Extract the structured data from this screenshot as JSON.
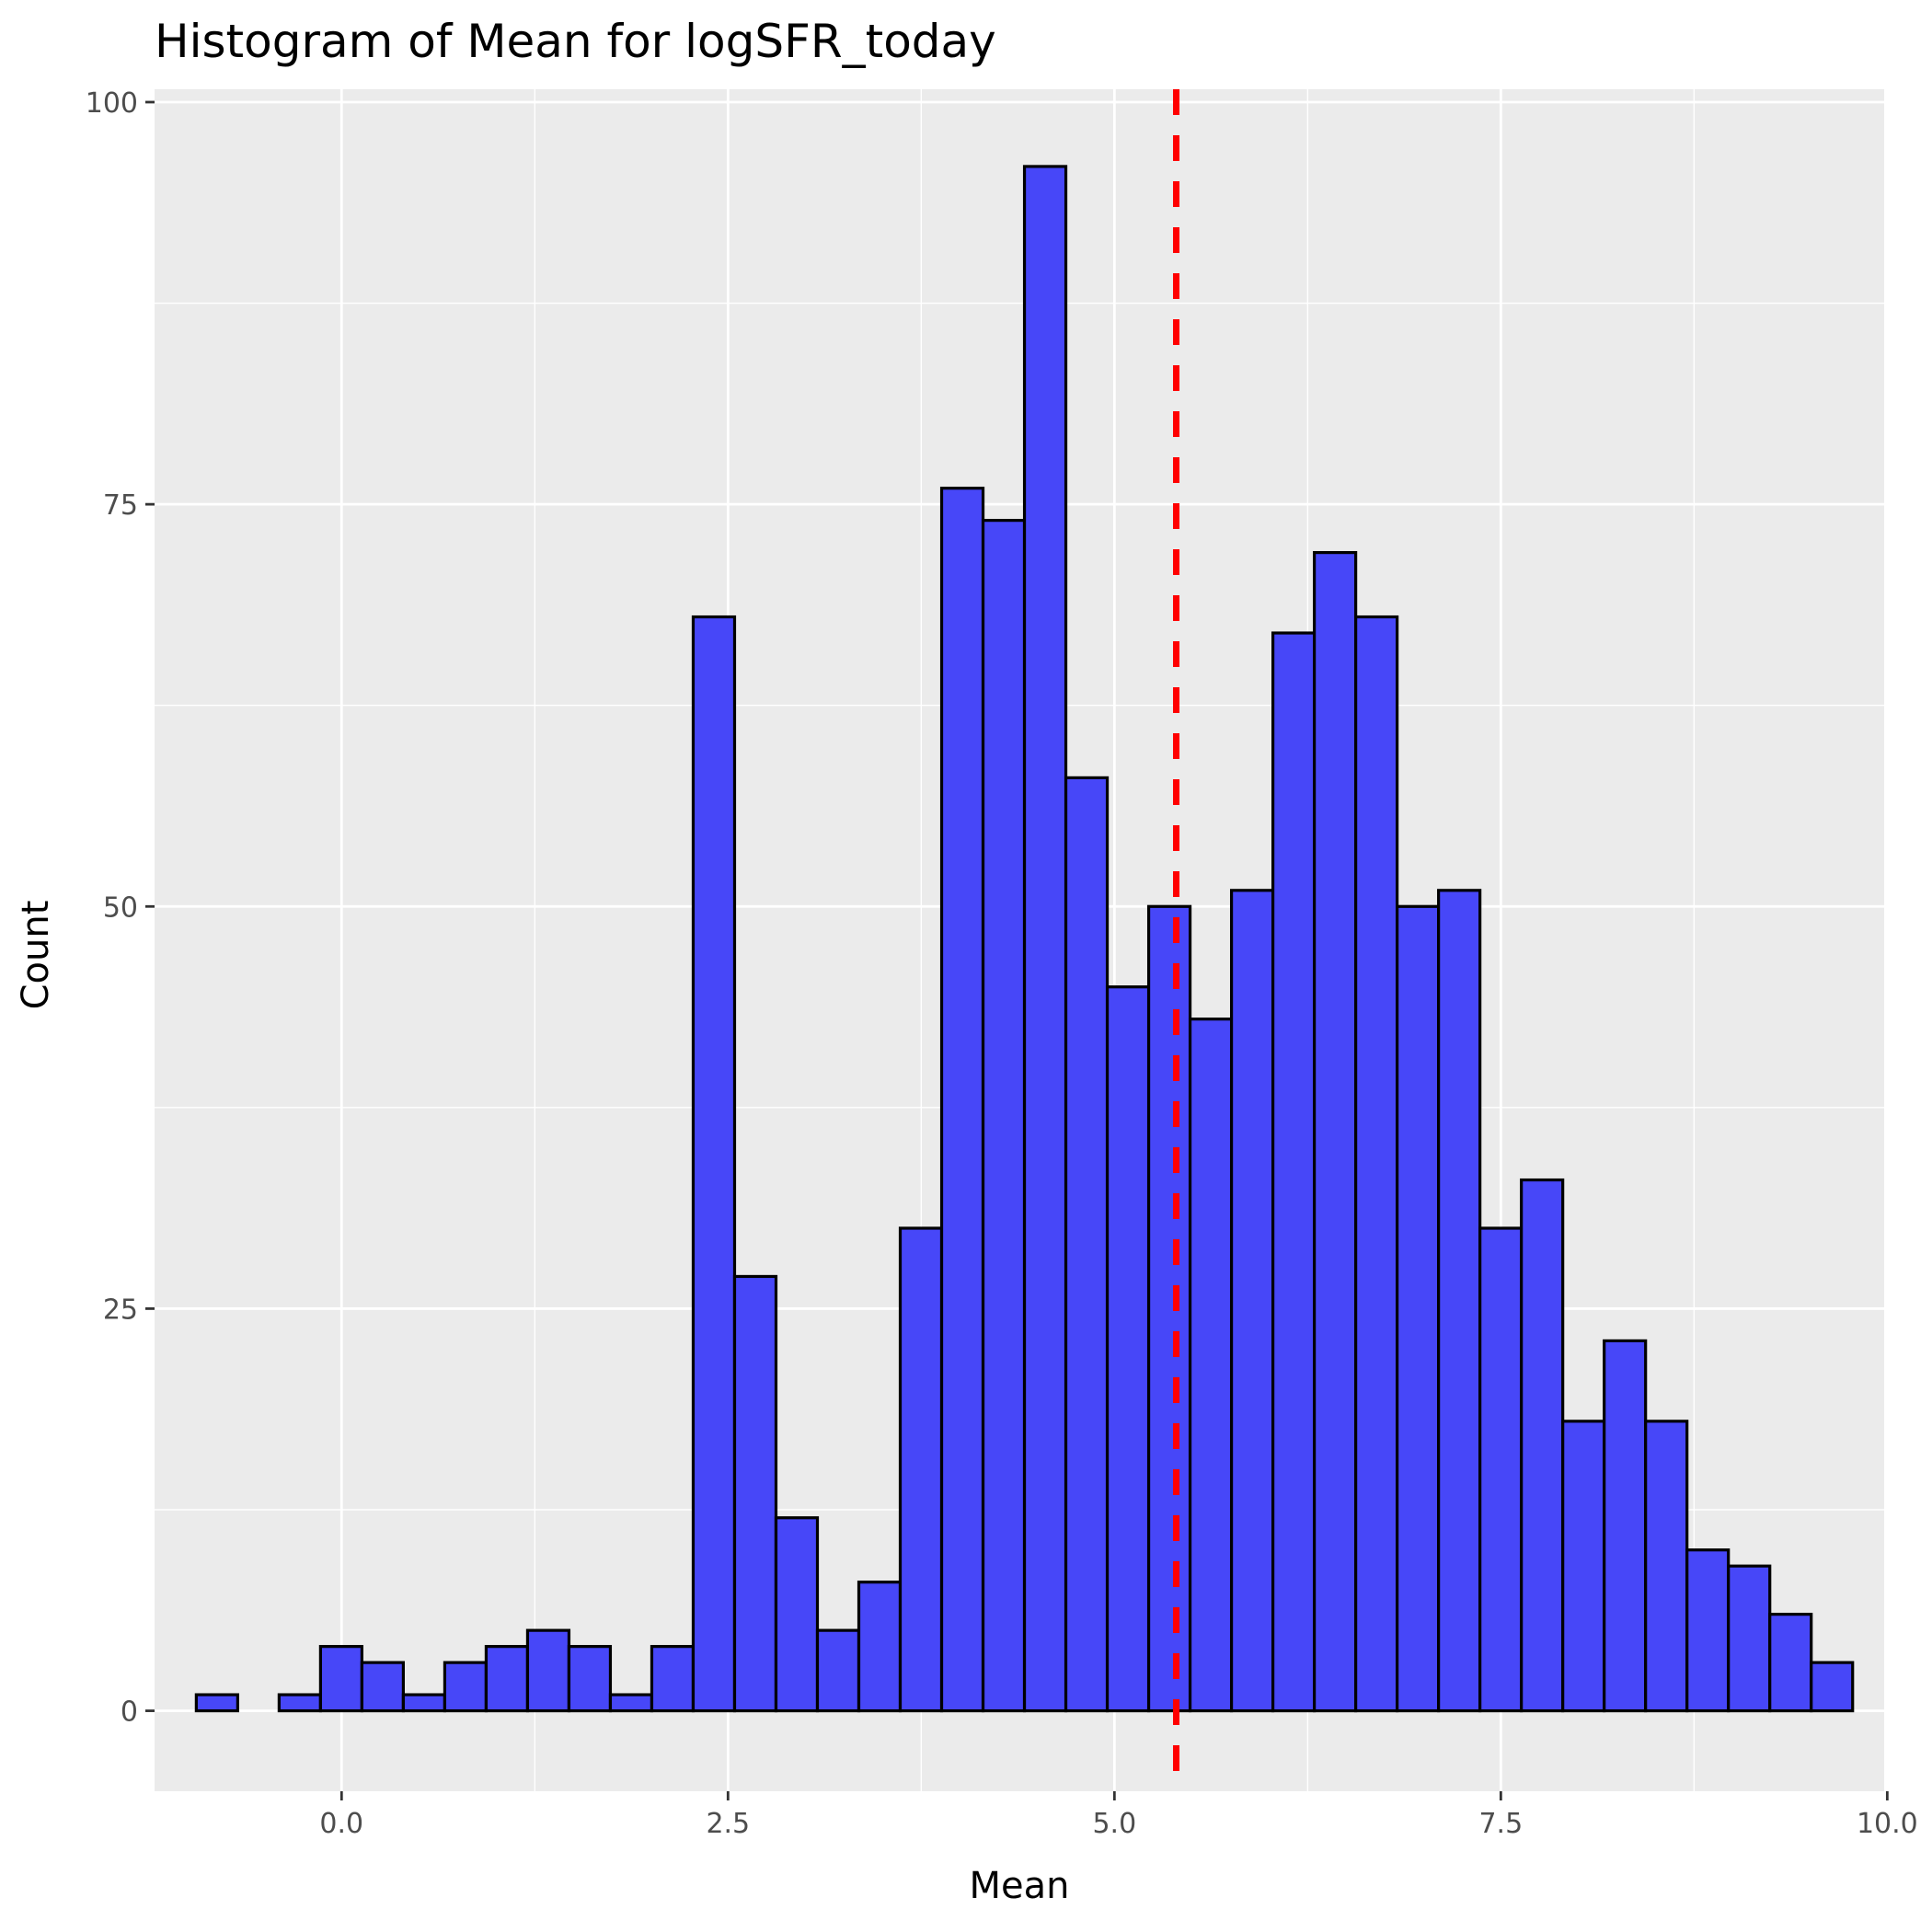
{
  "chart_data": {
    "type": "bar",
    "subtype": "histogram",
    "title": "Histogram of Mean for logSFR_today",
    "xlabel": "Mean",
    "ylabel": "Count",
    "xlim": [
      -1.21,
      9.98
    ],
    "ylim": [
      -5,
      100.8
    ],
    "x_ticks": [
      0.0,
      2.5,
      5.0,
      7.5,
      10.0
    ],
    "x_tick_labels": [
      "0.0",
      "2.5",
      "5.0",
      "7.5",
      "10.0"
    ],
    "y_ticks": [
      0,
      25,
      50,
      75,
      100
    ],
    "y_tick_labels": [
      "0",
      "25",
      "50",
      "75",
      "100"
    ],
    "grid": true,
    "bin_width": 0.2679,
    "bins_start": -0.94,
    "counts": [
      1,
      0,
      1,
      4,
      3,
      1,
      3,
      4,
      5,
      4,
      1,
      4,
      68,
      27,
      12,
      5,
      8,
      30,
      76,
      74,
      96,
      58,
      45,
      50,
      43,
      51,
      67,
      72,
      68,
      50,
      51,
      30,
      33,
      18,
      23,
      18,
      10,
      9,
      6,
      3
    ],
    "mean_line": 5.4,
    "colors": {
      "bar_fill": "#4747f8",
      "bar_stroke": "#000000",
      "mean_line": "#ff0000",
      "panel_bg": "#ebebeb",
      "grid": "#ffffff"
    }
  }
}
